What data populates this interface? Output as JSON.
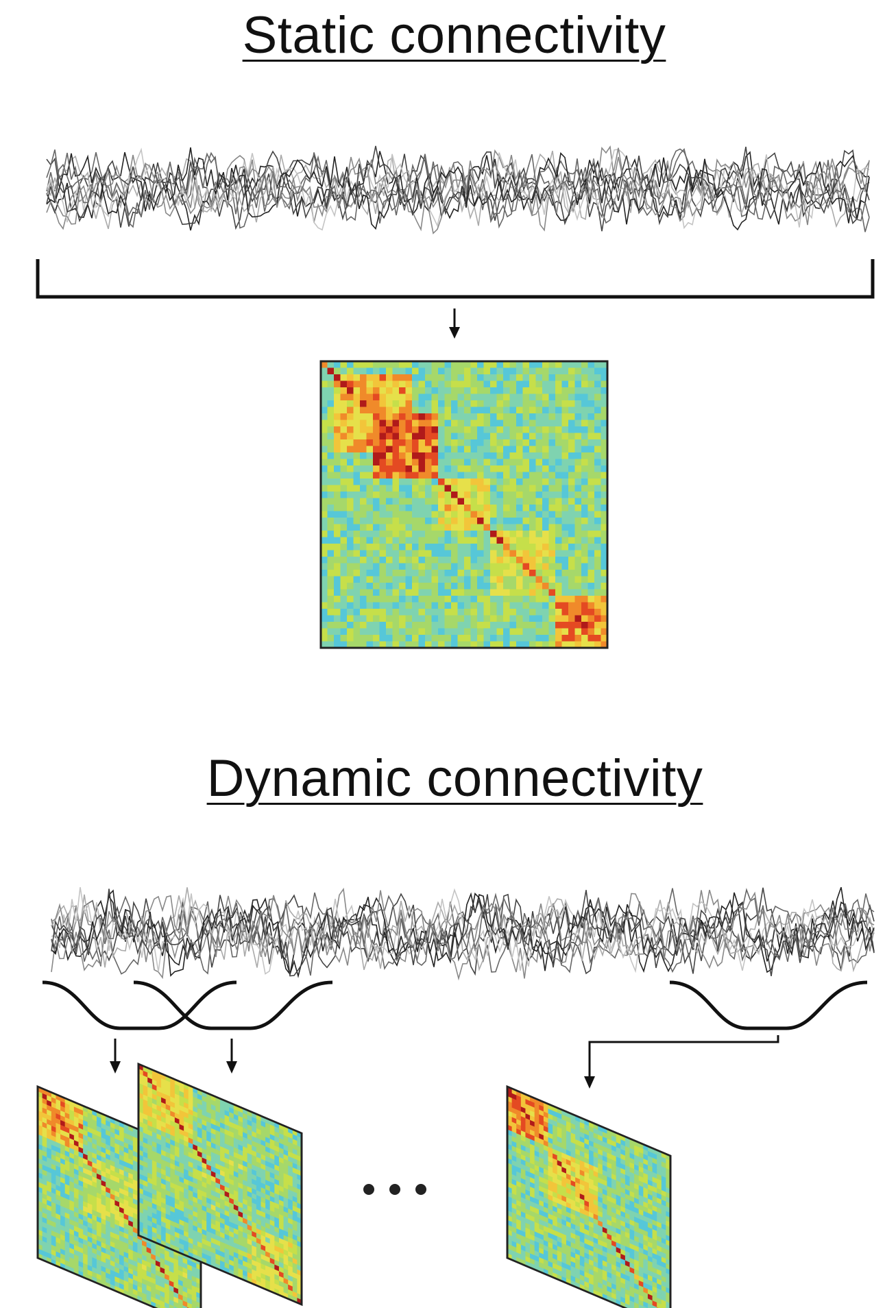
{
  "static_section": {
    "title": "Static connectivity"
  },
  "dynamic_section": {
    "title": "Dynamic connectivity",
    "ellipsis": "• • •"
  },
  "palette": {
    "matrix_colors": [
      "#1e3fb0",
      "#2f7fd8",
      "#3fc0e0",
      "#56c7d8",
      "#7fd3b0",
      "#a6d86a",
      "#c6df4a",
      "#e6e04a",
      "#f2c53a",
      "#f08a2a",
      "#e44a22",
      "#b01a1a"
    ],
    "signal_colors": [
      "#222222",
      "#444444",
      "#666666",
      "#888888",
      "#aaaaaa",
      "#c4c4c4"
    ],
    "line_color": "#111111"
  }
}
